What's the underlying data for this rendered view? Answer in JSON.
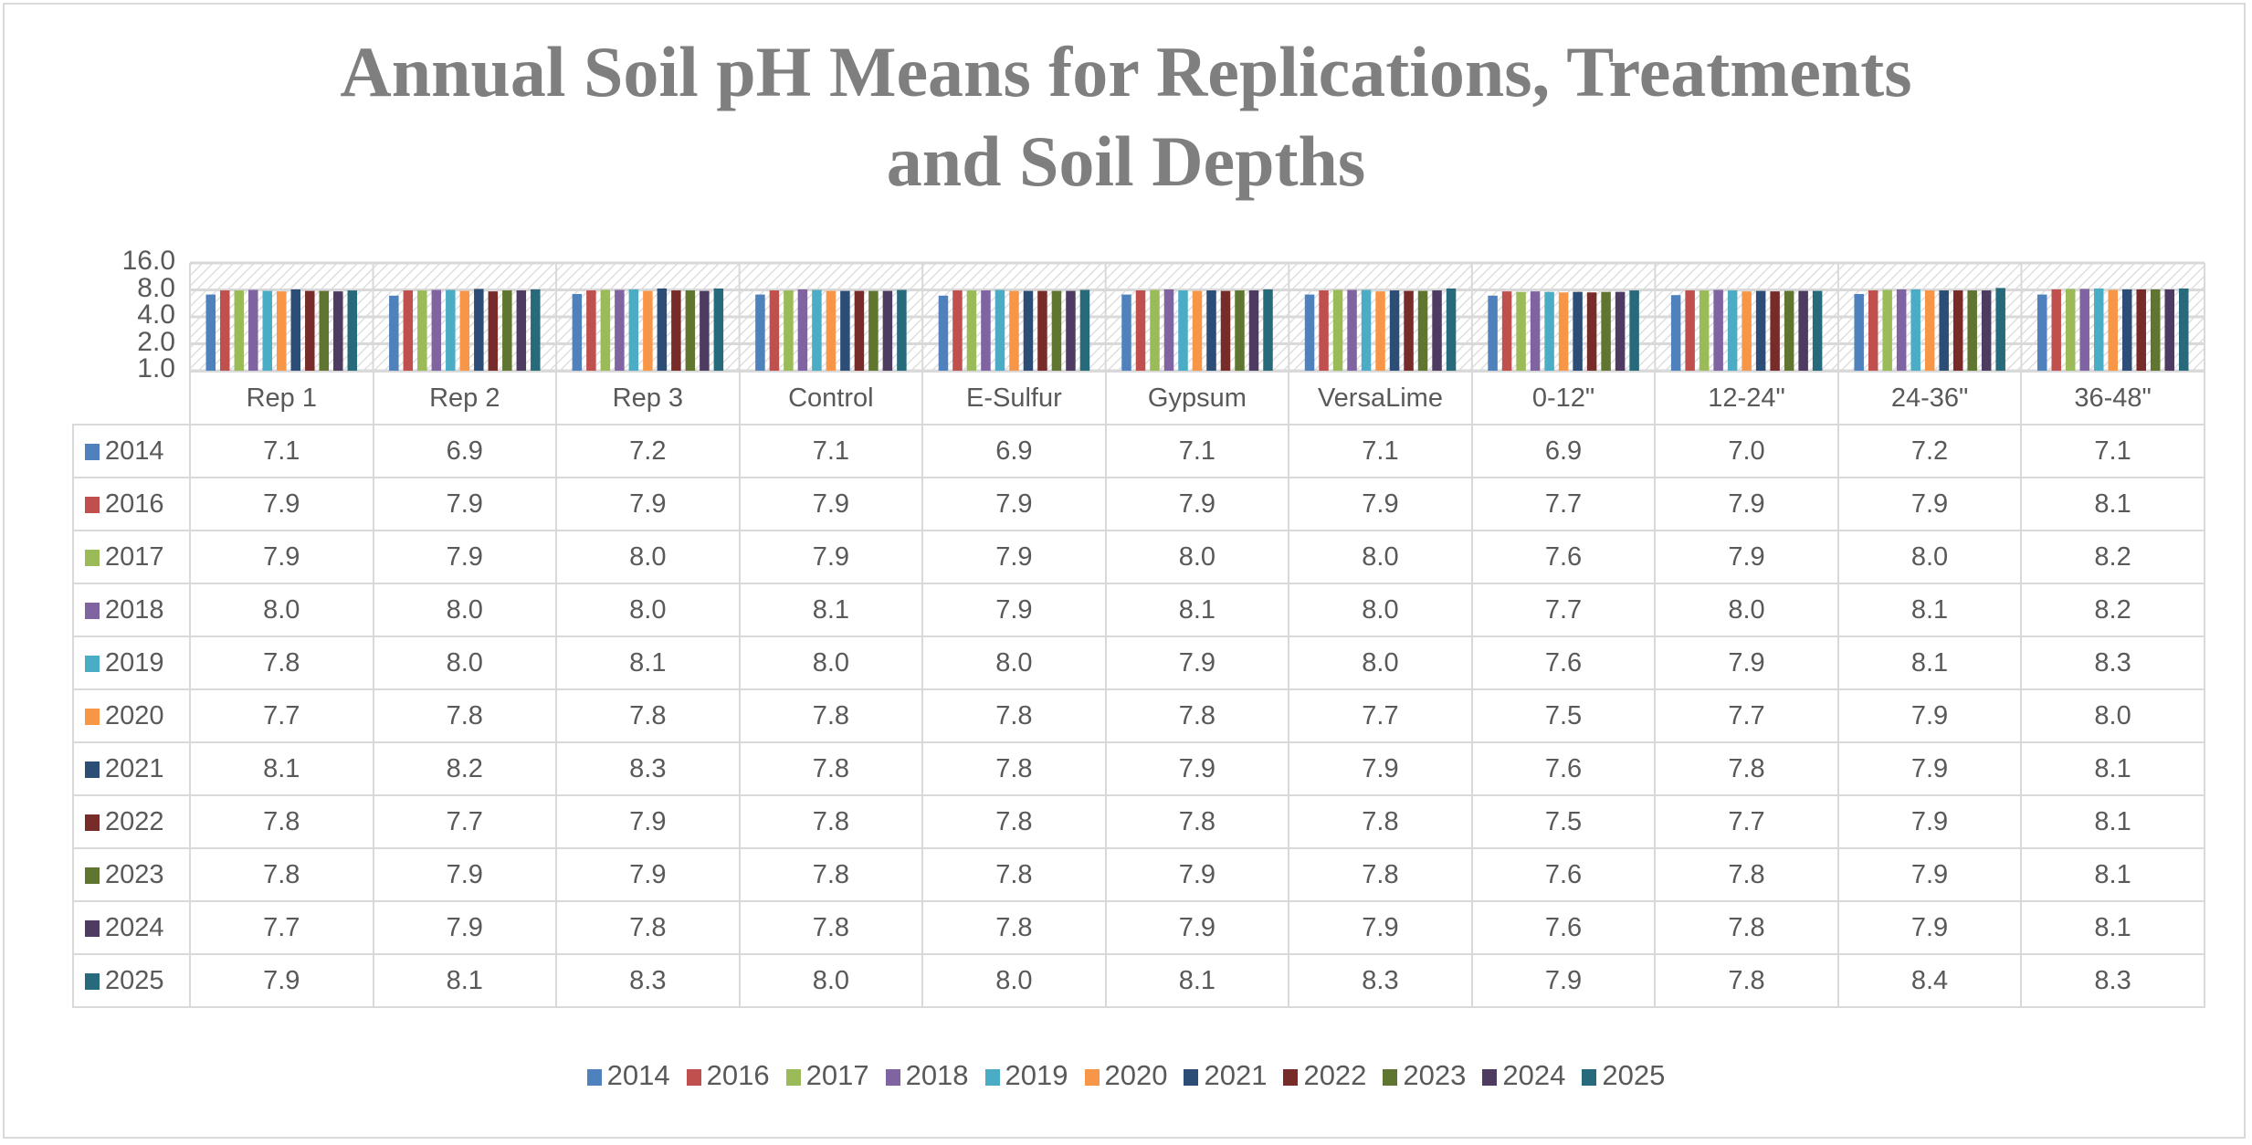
{
  "chart_data": {
    "type": "bar",
    "title": "Annual Soil pH Means for Replications, Treatments and Soil Depths",
    "title_lines": [
      "Annual Soil pH Means for Replications, Treatments",
      "and Soil Depths"
    ],
    "categories": [
      "Rep 1",
      "Rep 2",
      "Rep 3",
      "Control",
      "E-Sulfur",
      "Gypsum",
      "VersaLime",
      "0-12\"",
      "12-24\"",
      "24-36\"",
      "36-48\""
    ],
    "y_scale": "log2",
    "ylim": [
      1,
      16
    ],
    "y_ticks": [
      "16.0",
      "8.0",
      "4.0",
      "2.0",
      "1.0"
    ],
    "y_tick_values": [
      16,
      8,
      4,
      2,
      1
    ],
    "grid": true,
    "plot_background": "hatched",
    "data_table": true,
    "legend_position": "bottom",
    "series": [
      {
        "name": "2014",
        "color": "#4F81BD",
        "values": [
          7.1,
          6.9,
          7.2,
          7.1,
          6.9,
          7.1,
          7.1,
          6.9,
          7.0,
          7.2,
          7.1
        ]
      },
      {
        "name": "2016",
        "color": "#C0504D",
        "values": [
          7.9,
          7.9,
          7.9,
          7.9,
          7.9,
          7.9,
          7.9,
          7.7,
          7.9,
          7.9,
          8.1
        ]
      },
      {
        "name": "2017",
        "color": "#9BBB59",
        "values": [
          7.9,
          7.9,
          8.0,
          7.9,
          7.9,
          8.0,
          8.0,
          7.6,
          7.9,
          8.0,
          8.2
        ]
      },
      {
        "name": "2018",
        "color": "#8064A2",
        "values": [
          8.0,
          8.0,
          8.0,
          8.1,
          7.9,
          8.1,
          8.0,
          7.7,
          8.0,
          8.1,
          8.2
        ]
      },
      {
        "name": "2019",
        "color": "#4BACC6",
        "values": [
          7.8,
          8.0,
          8.1,
          8.0,
          8.0,
          7.9,
          8.0,
          7.6,
          7.9,
          8.1,
          8.3
        ]
      },
      {
        "name": "2020",
        "color": "#F79646",
        "values": [
          7.7,
          7.8,
          7.8,
          7.8,
          7.8,
          7.8,
          7.7,
          7.5,
          7.7,
          7.9,
          8.0
        ]
      },
      {
        "name": "2021",
        "color": "#2C4D75",
        "values": [
          8.1,
          8.2,
          8.3,
          7.8,
          7.8,
          7.9,
          7.9,
          7.6,
          7.8,
          7.9,
          8.1
        ]
      },
      {
        "name": "2022",
        "color": "#772C2A",
        "values": [
          7.8,
          7.7,
          7.9,
          7.8,
          7.8,
          7.8,
          7.8,
          7.5,
          7.7,
          7.9,
          8.1
        ]
      },
      {
        "name": "2023",
        "color": "#5F7530",
        "values": [
          7.8,
          7.9,
          7.9,
          7.8,
          7.8,
          7.9,
          7.8,
          7.6,
          7.8,
          7.9,
          8.1
        ]
      },
      {
        "name": "2024",
        "color": "#4D3B62",
        "values": [
          7.7,
          7.9,
          7.8,
          7.8,
          7.8,
          7.9,
          7.9,
          7.6,
          7.8,
          7.9,
          8.1
        ]
      },
      {
        "name": "2025",
        "color": "#276A7C",
        "values": [
          7.9,
          8.1,
          8.3,
          8.0,
          8.0,
          8.1,
          8.3,
          7.9,
          7.8,
          8.4,
          8.3
        ]
      }
    ]
  }
}
